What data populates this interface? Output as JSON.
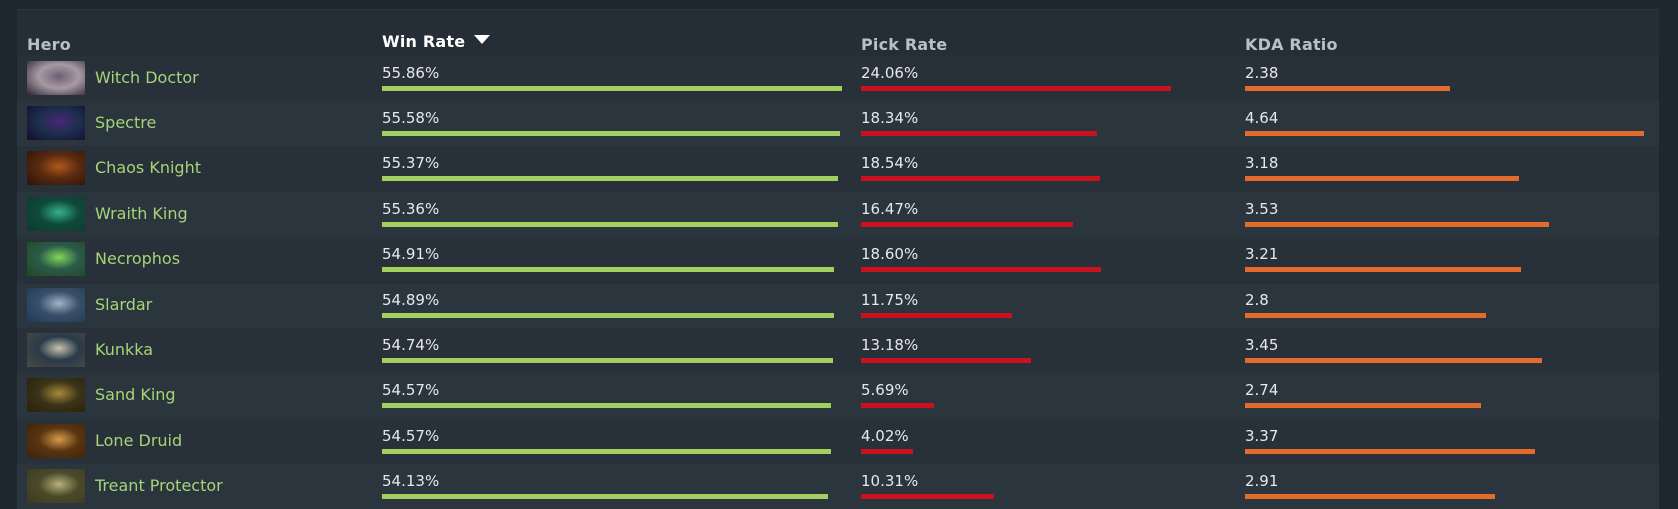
{
  "header": {
    "hero": "Hero",
    "win_rate": "Win Rate",
    "pick_rate": "Pick Rate",
    "kda": "KDA Ratio",
    "sort_icon": "sort-descending-icon"
  },
  "colors": {
    "hero_name": "#a7d477",
    "win_bar": "#a3cf5e",
    "pick_bar": "#c9121e",
    "kda_bar": "#e36b2c"
  },
  "rows": [
    {
      "hero": "Witch Doctor",
      "win": "55.86%",
      "win_v": 55.86,
      "pick": "24.06%",
      "pick_v": 24.06,
      "kda": "2.38",
      "kda_v": 2.38,
      "portrait": [
        "#2a2436",
        "#6d5f72",
        "#a89aa2"
      ]
    },
    {
      "hero": "Spectre",
      "win": "55.58%",
      "win_v": 55.58,
      "pick": "18.34%",
      "pick_v": 18.34,
      "kda": "4.64",
      "kda_v": 4.64,
      "portrait": [
        "#160c2a",
        "#4a2678",
        "#1d2f4f"
      ]
    },
    {
      "hero": "Chaos Knight",
      "win": "55.37%",
      "win_v": 55.37,
      "pick": "18.54%",
      "pick_v": 18.54,
      "kda": "3.18",
      "kda_v": 3.18,
      "portrait": [
        "#2a1408",
        "#b0581a",
        "#5a2a10"
      ]
    },
    {
      "hero": "Wraith King",
      "win": "55.36%",
      "win_v": 55.36,
      "pick": "16.47%",
      "pick_v": 16.47,
      "kda": "3.53",
      "kda_v": 3.53,
      "portrait": [
        "#0c3a2c",
        "#37b28a",
        "#0f4a3a"
      ]
    },
    {
      "hero": "Necrophos",
      "win": "54.91%",
      "win_v": 54.91,
      "pick": "18.60%",
      "pick_v": 18.6,
      "kda": "3.21",
      "kda_v": 3.21,
      "portrait": [
        "#1e4a1e",
        "#7ed957",
        "#2c5a4a"
      ]
    },
    {
      "hero": "Slardar",
      "win": "54.89%",
      "win_v": 54.89,
      "pick": "11.75%",
      "pick_v": 11.75,
      "kda": "2.8",
      "kda_v": 2.8,
      "portrait": [
        "#1c3a5a",
        "#9fb4c8",
        "#3a4f68"
      ]
    },
    {
      "hero": "Kunkka",
      "win": "54.74%",
      "win_v": 54.74,
      "pick": "13.18%",
      "pick_v": 13.18,
      "kda": "3.45",
      "kda_v": 3.45,
      "portrait": [
        "#4a4a44",
        "#c8c2b0",
        "#2a3a4a"
      ]
    },
    {
      "hero": "Sand King",
      "win": "54.57%",
      "win_v": 54.57,
      "pick": "5.69%",
      "pick_v": 5.69,
      "kda": "2.74",
      "kda_v": 2.74,
      "portrait": [
        "#2a2008",
        "#a8883a",
        "#3a3418"
      ]
    },
    {
      "hero": "Lone Druid",
      "win": "54.57%",
      "win_v": 54.57,
      "pick": "4.02%",
      "pick_v": 4.02,
      "kda": "3.37",
      "kda_v": 3.37,
      "portrait": [
        "#3a2408",
        "#d49a4a",
        "#5a3410"
      ]
    },
    {
      "hero": "Treant Protector",
      "win": "54.13%",
      "win_v": 54.13,
      "pick": "10.31%",
      "pick_v": 10.31,
      "kda": "2.91",
      "kda_v": 2.91,
      "portrait": [
        "#3a3a22",
        "#b8b07a",
        "#4a4a2a"
      ]
    }
  ]
}
